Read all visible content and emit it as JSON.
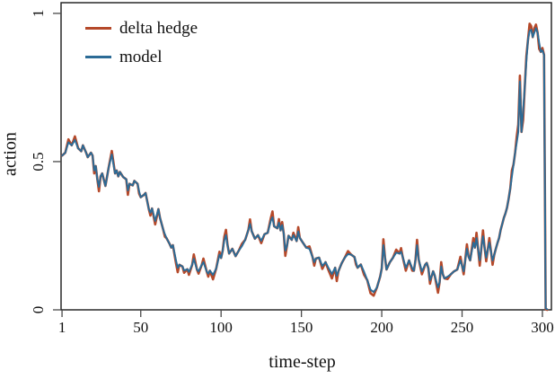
{
  "chart_data": {
    "type": "line",
    "title": "",
    "xlabel": "time-step",
    "ylabel": "action",
    "xlim": [
      0.4,
      305.6
    ],
    "ylim": [
      0,
      1.036
    ],
    "grid": false,
    "legend_position": "top-left-inside",
    "x_ticks": [
      1,
      50,
      100,
      150,
      200,
      250,
      300
    ],
    "x_tick_labels": [
      "1",
      "50",
      "100",
      "150",
      "200",
      "250",
      "300"
    ],
    "y_ticks": [
      0,
      0.5,
      1
    ],
    "y_tick_labels": [
      "0",
      "0.5",
      "1"
    ],
    "y_tick_labels_rotated": true,
    "axis_color": "#1b1b1b",
    "tick_color": "#4a4a4a",
    "x": [
      1,
      3,
      5,
      7,
      9,
      11,
      13,
      14,
      16,
      17,
      19,
      20,
      21,
      22,
      23,
      24,
      25,
      26,
      28,
      30,
      32,
      34,
      35,
      36,
      37,
      39,
      41,
      42,
      43,
      45,
      46,
      48,
      49,
      50,
      52,
      53,
      55,
      56,
      57,
      59,
      61,
      62,
      64,
      65,
      66,
      68,
      69,
      70,
      72,
      73,
      74,
      76,
      77,
      79,
      80,
      82,
      83,
      85,
      86,
      88,
      89,
      91,
      92,
      93,
      95,
      97,
      99,
      100,
      101,
      102,
      103,
      104,
      105,
      107,
      109,
      111,
      113,
      115,
      117,
      118,
      119,
      121,
      123,
      125,
      127,
      129,
      131,
      132,
      133,
      135,
      136,
      137,
      138,
      139,
      140,
      141,
      142,
      144,
      145,
      147,
      148,
      149,
      151,
      153,
      155,
      157,
      158,
      159,
      161,
      163,
      165,
      167,
      169,
      171,
      172,
      173,
      175,
      177,
      179,
      181,
      183,
      184,
      185,
      187,
      189,
      191,
      193,
      195,
      197,
      199,
      200,
      201,
      202,
      203,
      205,
      207,
      209,
      211,
      212,
      213,
      215,
      217,
      219,
      220,
      221,
      222,
      223,
      225,
      227,
      228,
      229,
      230,
      231,
      232,
      233,
      235,
      236,
      237,
      238,
      239,
      241,
      243,
      245,
      247,
      249,
      251,
      253,
      254,
      255,
      257,
      258,
      259,
      261,
      263,
      264,
      265,
      267,
      269,
      270,
      271,
      272,
      273,
      274,
      275,
      276,
      277,
      278,
      279,
      280,
      281,
      282,
      283,
      284,
      285,
      286,
      287,
      288,
      289,
      290,
      291,
      292,
      293,
      294,
      295,
      296,
      297,
      298,
      299,
      300,
      301,
      302,
      303
    ],
    "series": [
      {
        "name": "delta hedge",
        "color": "#b5492a",
        "values": [
          0.52,
          0.53,
          0.575,
          0.555,
          0.585,
          0.545,
          0.535,
          0.555,
          0.53,
          0.515,
          0.53,
          0.52,
          0.46,
          0.485,
          0.44,
          0.4,
          0.45,
          0.46,
          0.418,
          0.48,
          0.536,
          0.46,
          0.47,
          0.45,
          0.465,
          0.448,
          0.44,
          0.388,
          0.425,
          0.42,
          0.435,
          0.425,
          0.392,
          0.38,
          0.388,
          0.394,
          0.34,
          0.318,
          0.342,
          0.288,
          0.34,
          0.31,
          0.27,
          0.247,
          0.242,
          0.222,
          0.21,
          0.218,
          0.155,
          0.127,
          0.152,
          0.146,
          0.125,
          0.137,
          0.118,
          0.152,
          0.187,
          0.136,
          0.122,
          0.152,
          0.173,
          0.13,
          0.112,
          0.132,
          0.103,
          0.14,
          0.196,
          0.175,
          0.2,
          0.247,
          0.27,
          0.22,
          0.19,
          0.206,
          0.181,
          0.2,
          0.223,
          0.236,
          0.27,
          0.305,
          0.266,
          0.24,
          0.252,
          0.225,
          0.255,
          0.26,
          0.31,
          0.332,
          0.282,
          0.275,
          0.306,
          0.268,
          0.296,
          0.256,
          0.182,
          0.215,
          0.25,
          0.236,
          0.26,
          0.232,
          0.279,
          0.243,
          0.226,
          0.21,
          0.214,
          0.176,
          0.149,
          0.173,
          0.176,
          0.138,
          0.161,
          0.132,
          0.106,
          0.142,
          0.097,
          0.13,
          0.157,
          0.176,
          0.198,
          0.186,
          0.178,
          0.152,
          0.142,
          0.153,
          0.118,
          0.1,
          0.056,
          0.048,
          0.075,
          0.112,
          0.14,
          0.238,
          0.176,
          0.136,
          0.16,
          0.176,
          0.203,
          0.19,
          0.208,
          0.18,
          0.132,
          0.167,
          0.132,
          0.132,
          0.17,
          0.236,
          0.17,
          0.12,
          0.152,
          0.158,
          0.14,
          0.088,
          0.112,
          0.13,
          0.115,
          0.058,
          0.092,
          0.161,
          0.12,
          0.106,
          0.104,
          0.12,
          0.13,
          0.136,
          0.179,
          0.12,
          0.221,
          0.18,
          0.167,
          0.242,
          0.21,
          0.26,
          0.149,
          0.268,
          0.21,
          0.164,
          0.242,
          0.152,
          0.185,
          0.206,
          0.225,
          0.242,
          0.27,
          0.29,
          0.31,
          0.325,
          0.345,
          0.375,
          0.41,
          0.47,
          0.49,
          0.53,
          0.585,
          0.625,
          0.79,
          0.6,
          0.64,
          0.75,
          0.855,
          0.91,
          0.965,
          0.957,
          0.92,
          0.95,
          0.962,
          0.935,
          0.88,
          0.87,
          0.883,
          0.86,
          0.002,
          0.0
        ]
      },
      {
        "name": "model",
        "color": "#2c6b96",
        "values": [
          0.52,
          0.53,
          0.565,
          0.555,
          0.573,
          0.545,
          0.535,
          0.555,
          0.53,
          0.515,
          0.53,
          0.52,
          0.47,
          0.485,
          0.44,
          0.415,
          0.45,
          0.46,
          0.418,
          0.48,
          0.524,
          0.46,
          0.47,
          0.45,
          0.465,
          0.448,
          0.44,
          0.403,
          0.425,
          0.42,
          0.435,
          0.425,
          0.4,
          0.38,
          0.388,
          0.394,
          0.34,
          0.328,
          0.342,
          0.3,
          0.34,
          0.31,
          0.27,
          0.255,
          0.242,
          0.222,
          0.21,
          0.218,
          0.165,
          0.142,
          0.152,
          0.146,
          0.133,
          0.137,
          0.128,
          0.152,
          0.172,
          0.136,
          0.13,
          0.152,
          0.161,
          0.13,
          0.122,
          0.132,
          0.118,
          0.14,
          0.186,
          0.175,
          0.2,
          0.235,
          0.252,
          0.22,
          0.19,
          0.206,
          0.181,
          0.2,
          0.215,
          0.236,
          0.27,
          0.29,
          0.266,
          0.24,
          0.252,
          0.233,
          0.255,
          0.26,
          0.3,
          0.312,
          0.282,
          0.275,
          0.294,
          0.268,
          0.286,
          0.256,
          0.2,
          0.215,
          0.25,
          0.236,
          0.252,
          0.232,
          0.264,
          0.243,
          0.226,
          0.21,
          0.206,
          0.176,
          0.161,
          0.173,
          0.176,
          0.148,
          0.161,
          0.14,
          0.121,
          0.142,
          0.115,
          0.13,
          0.157,
          0.176,
          0.188,
          0.186,
          0.178,
          0.16,
          0.142,
          0.153,
          0.128,
          0.1,
          0.068,
          0.06,
          0.075,
          0.112,
          0.14,
          0.218,
          0.176,
          0.136,
          0.16,
          0.176,
          0.193,
          0.19,
          0.196,
          0.18,
          0.142,
          0.167,
          0.14,
          0.132,
          0.17,
          0.218,
          0.17,
          0.13,
          0.152,
          0.158,
          0.14,
          0.1,
          0.112,
          0.13,
          0.115,
          0.076,
          0.092,
          0.146,
          0.12,
          0.106,
          0.112,
          0.12,
          0.13,
          0.136,
          0.167,
          0.13,
          0.206,
          0.18,
          0.167,
          0.227,
          0.21,
          0.242,
          0.167,
          0.248,
          0.21,
          0.176,
          0.227,
          0.167,
          0.185,
          0.206,
          0.225,
          0.242,
          0.27,
          0.29,
          0.31,
          0.325,
          0.345,
          0.375,
          0.41,
          0.45,
          0.49,
          0.53,
          0.565,
          0.6,
          0.77,
          0.6,
          0.67,
          0.75,
          0.84,
          0.91,
          0.94,
          0.945,
          0.92,
          0.935,
          0.95,
          0.935,
          0.9,
          0.87,
          0.875,
          0.86,
          0.005,
          0.002
        ]
      }
    ]
  },
  "legend": {
    "items": [
      {
        "label": "delta hedge"
      },
      {
        "label": "model"
      }
    ]
  },
  "axes": {
    "x_title": "time-step",
    "y_title": "action"
  }
}
